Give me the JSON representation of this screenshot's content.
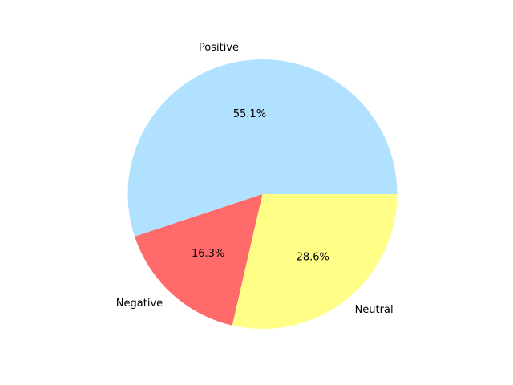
{
  "chart_data": {
    "type": "pie",
    "title": "",
    "slices": [
      {
        "label": "Positive",
        "value": 55.1,
        "pct_text": "55.1%",
        "color": "#b0e2ff"
      },
      {
        "label": "Negative",
        "value": 16.3,
        "pct_text": "16.3%",
        "color": "#ff6b6b"
      },
      {
        "label": "Neutral",
        "value": 28.6,
        "pct_text": "28.6%",
        "color": "#ffff88"
      }
    ],
    "start_angle_deg": 0,
    "direction": "counterclockwise",
    "legend": "none"
  }
}
